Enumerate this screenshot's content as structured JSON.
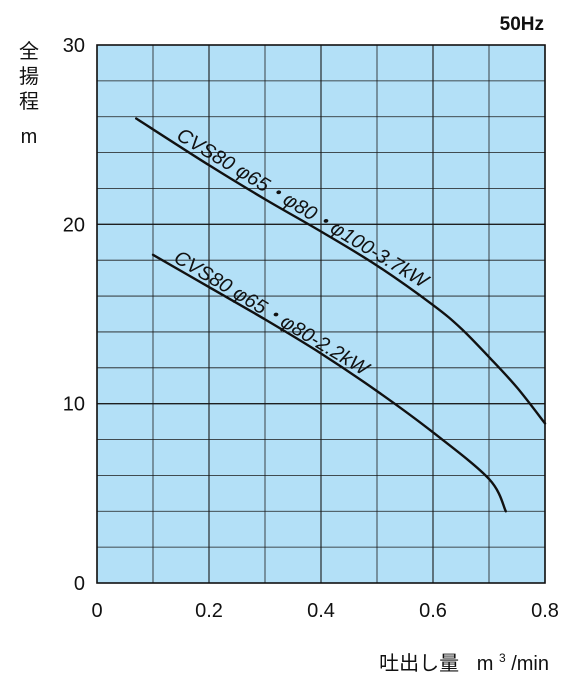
{
  "chart_data": {
    "type": "line",
    "title": "",
    "frequency_label": "50Hz",
    "ylabel_chars": [
      "全",
      "揚",
      "程",
      "m"
    ],
    "xlabel": "吐出し量",
    "xunit_base": "m",
    "xunit_sup": "3",
    "xunit_tail": "/min",
    "xlim": [
      0,
      0.8
    ],
    "ylim": [
      0,
      30
    ],
    "xticks": [
      0,
      0.2,
      0.4,
      0.6,
      0.8
    ],
    "xtick_labels": [
      "0",
      "0.2",
      "0.4",
      "0.6",
      "0.8"
    ],
    "yticks": [
      0,
      10,
      20,
      30
    ],
    "ytick_labels": [
      "0",
      "10",
      "20",
      "30"
    ],
    "x_minor_step": 0.1,
    "y_minor_step": 2,
    "grid": true,
    "plot_background": "#b3e0f7",
    "grid_color": "#1a1a1a",
    "series": [
      {
        "name": "CVS80 φ65・φ80・φ100-3.7kW",
        "x": [
          0.07,
          0.2,
          0.3,
          0.4,
          0.5,
          0.6,
          0.65,
          0.7,
          0.75,
          0.8
        ],
        "y": [
          25.9,
          23.3,
          21.4,
          19.6,
          17.7,
          15.5,
          14.2,
          12.6,
          10.9,
          8.9
        ]
      },
      {
        "name": "CVS80 φ65・φ80-2.2kW",
        "x": [
          0.1,
          0.2,
          0.3,
          0.4,
          0.5,
          0.6,
          0.7,
          0.73
        ],
        "y": [
          18.3,
          16.5,
          14.7,
          12.8,
          10.7,
          8.4,
          5.8,
          4.0
        ]
      }
    ]
  }
}
